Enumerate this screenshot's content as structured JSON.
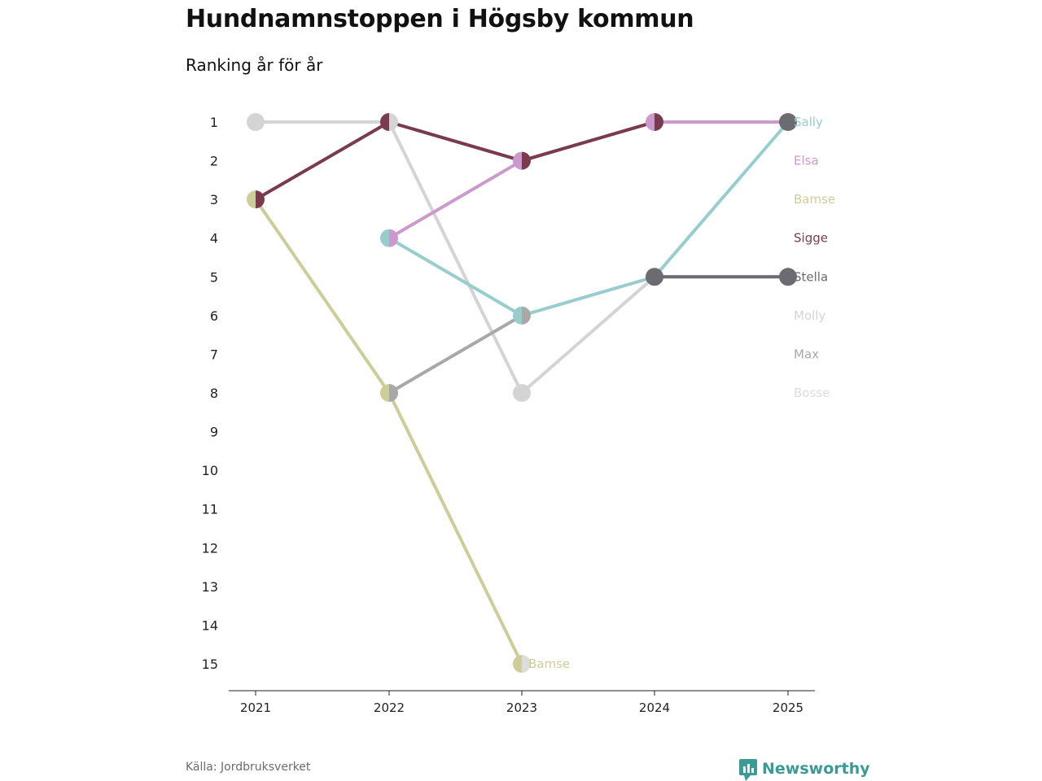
{
  "chart_data": {
    "type": "line",
    "title": "Hundnamnstoppen i Högsby kommun",
    "subtitle": "Ranking år för år",
    "x": [
      "2021",
      "2022",
      "2023",
      "2024",
      "2025"
    ],
    "y_ticks": [
      "1",
      "2",
      "3",
      "4",
      "5",
      "6",
      "7",
      "8",
      "9",
      "10",
      "11",
      "12",
      "13",
      "14",
      "15"
    ],
    "ylim": [
      1,
      15
    ],
    "y_inverted": true,
    "series": [
      {
        "name": "Sally",
        "color": "#97cdcd",
        "ranks": [
          null,
          4,
          6,
          5,
          1
        ]
      },
      {
        "name": "Elsa",
        "color": "#cc99cc",
        "ranks": [
          null,
          4,
          2,
          1,
          1
        ]
      },
      {
        "name": "Bamse",
        "color": "#cdcd99",
        "ranks": [
          3,
          8,
          15,
          null,
          null
        ]
      },
      {
        "name": "Sigge",
        "color": "#7a3a50",
        "ranks": [
          3,
          1,
          2,
          1,
          null
        ]
      },
      {
        "name": "Stella",
        "color": "#6b6b72",
        "ranks": [
          null,
          null,
          null,
          5,
          5
        ]
      },
      {
        "name": "Molly",
        "color": "#d4d4d4",
        "ranks": [
          1,
          1,
          8,
          5,
          5
        ]
      },
      {
        "name": "Max",
        "color": "#a8a8a8",
        "ranks": [
          null,
          8,
          6,
          null,
          null
        ]
      },
      {
        "name": "Bosse",
        "color": "#dddddd",
        "ranks": [
          null,
          null,
          15,
          null,
          null
        ]
      }
    ],
    "end_labels": [
      "Sally",
      "Elsa",
      "Bamse",
      "Sigge",
      "Stella",
      "Molly",
      "Max",
      "Bosse"
    ],
    "inline_label": {
      "text": "Bamse",
      "year": "2023",
      "rank": 15,
      "color": "#cdcd99"
    }
  },
  "footer": {
    "source": "Källa: Jordbruksverket",
    "brand": "Newsworthy",
    "brand_color": "#3a9a96"
  }
}
